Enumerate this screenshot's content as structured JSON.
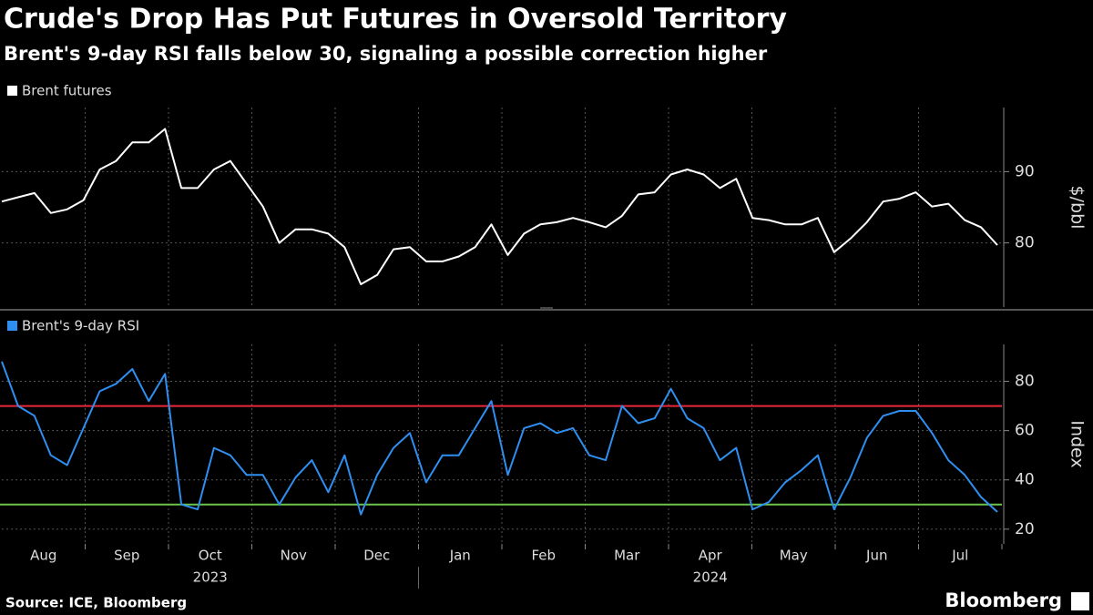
{
  "title": "Crude's Drop Has Put Futures in Oversold Territory",
  "subtitle": "Brent's 9-day RSI falls below 30, signaling a possible correction higher",
  "source": "Source: ICE, Bloomberg",
  "brand": "Bloomberg",
  "x_axis": {
    "months": [
      "Aug",
      "Sep",
      "Oct",
      "Nov",
      "Dec",
      "Jan",
      "Feb",
      "Mar",
      "Apr",
      "May",
      "Jun",
      "Jul"
    ],
    "years": [
      "2023",
      "2024"
    ]
  },
  "chart_data": [
    {
      "type": "line",
      "axis_label": "$/bbl",
      "grid": true,
      "ylim": [
        71,
        99
      ],
      "yticks": [
        80,
        90
      ],
      "series": [
        {
          "name": "Brent futures",
          "color": "#ffffff",
          "values": [
            85.8,
            86.4,
            87,
            84.2,
            84.7,
            86,
            90.3,
            91.5,
            94.1,
            94.1,
            96,
            87.7,
            87.7,
            90.3,
            91.5,
            88.3,
            85.1,
            80,
            81.9,
            81.9,
            81.3,
            79.4,
            74.2,
            75.5,
            79.1,
            79.4,
            77.4,
            77.4,
            78.1,
            79.4,
            82.6,
            78.3,
            81.3,
            82.6,
            82.9,
            83.5,
            82.9,
            82.2,
            83.8,
            86.8,
            87.1,
            89.6,
            90.3,
            89.6,
            87.7,
            89,
            83.5,
            83.2,
            82.6,
            82.6,
            83.5,
            78.7,
            80.6,
            82.9,
            85.8,
            86.2,
            87.1,
            85.1,
            85.5,
            83.2,
            82.2,
            79.7
          ]
        }
      ]
    },
    {
      "type": "line",
      "axis_label": "Index",
      "grid": true,
      "ylim": [
        14,
        95
      ],
      "yticks": [
        20,
        40,
        60,
        80
      ],
      "reference_lines": [
        {
          "value": 70,
          "color": "#e8283a"
        },
        {
          "value": 30,
          "color": "#6cc24a"
        }
      ],
      "series": [
        {
          "name": "Brent's 9-day RSI",
          "color": "#2f8ff0",
          "values": [
            88,
            70,
            66,
            50,
            46,
            61,
            76,
            79,
            85,
            72,
            83,
            30,
            28,
            53,
            50,
            42,
            42,
            30,
            41,
            48,
            35,
            50,
            26,
            42,
            53,
            59,
            39,
            50,
            50,
            61,
            72,
            42,
            61,
            63,
            59,
            61,
            50,
            48,
            70,
            63,
            65,
            77,
            65,
            61,
            48,
            53,
            28,
            31,
            39,
            44,
            50,
            28,
            41,
            57,
            66,
            68,
            68,
            59,
            48,
            42,
            33,
            27
          ]
        }
      ]
    }
  ]
}
